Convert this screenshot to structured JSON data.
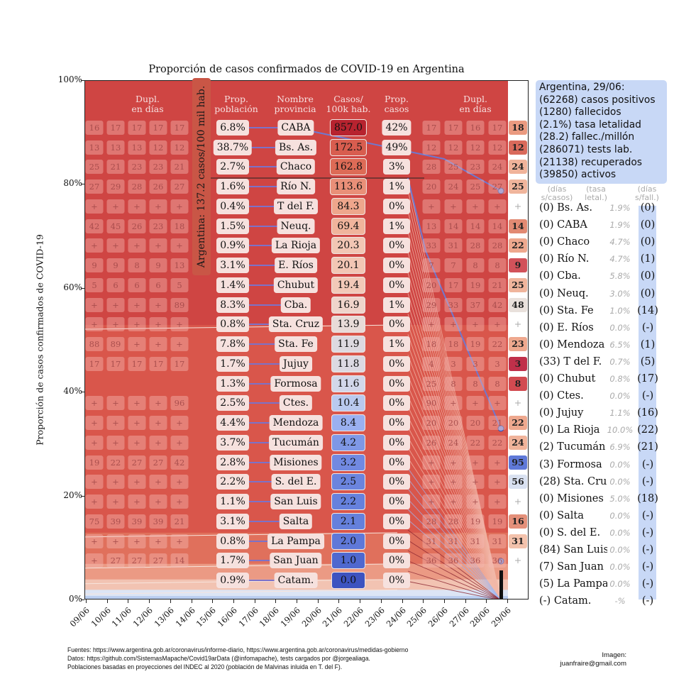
{
  "chart_data": {
    "type": "area",
    "title": "Proporción de casos confirmados de COVID-19 en Argentina",
    "ylabel": "Proporción de casos confirmados de COVID-19",
    "xlabel": "",
    "ylim": [
      0,
      100
    ],
    "yticks": [
      "0%",
      "20%",
      "40%",
      "60%",
      "80%",
      "100%"
    ],
    "categories": [
      "09/06",
      "10/06",
      "11/06",
      "12/06",
      "13/06",
      "14/06",
      "15/06",
      "16/06",
      "17/06",
      "18/06",
      "19/06",
      "20/06",
      "21/06",
      "22/06",
      "23/06",
      "24/06",
      "25/06",
      "26/06",
      "27/06",
      "28/06",
      "29/06"
    ],
    "argentina_label": "Argentina: 137.2 casos/100 mil hab.",
    "headers": {
      "dupl_left": "Dupl.\nen días",
      "prop_poblacion": "Prop.\npoblación",
      "nombre": "Nombre\nprovincia",
      "casos_100k": "Casos/\n100k hab.",
      "prop_casos": "Prop.\ncasos",
      "dupl_right": "Dupl.\nen días"
    },
    "provinces": [
      {
        "name": "CABA",
        "prop_poblacion": "6.8%",
        "casos_100k": "857.0",
        "prop_casos": "42%",
        "dupl_left": [
          "16",
          "17",
          "17",
          "17",
          "17"
        ],
        "dupl_right": [
          "17",
          "17",
          "16",
          "17"
        ],
        "dupl_latest": "18",
        "casos_color": "#b7232f",
        "latest_color": "#ea9a80"
      },
      {
        "name": "Bs. As.",
        "prop_poblacion": "38.7%",
        "casos_100k": "172.5",
        "prop_casos": "49%",
        "dupl_left": [
          "13",
          "13",
          "13",
          "12",
          "12"
        ],
        "dupl_right": [
          "12",
          "12",
          "12",
          "12"
        ],
        "dupl_latest": "12",
        "casos_color": "#d85d4f",
        "latest_color": "#d96a5b"
      },
      {
        "name": "Chaco",
        "prop_poblacion": "2.7%",
        "casos_100k": "162.8",
        "prop_casos": "3%",
        "dupl_left": [
          "25",
          "21",
          "23",
          "23",
          "21"
        ],
        "dupl_right": [
          "28",
          "25",
          "23",
          "24"
        ],
        "dupl_latest": "24",
        "casos_color": "#dd6b56",
        "latest_color": "#f0b39a"
      },
      {
        "name": "Río N.",
        "prop_poblacion": "1.6%",
        "casos_100k": "113.6",
        "prop_casos": "1%",
        "dupl_left": [
          "27",
          "29",
          "28",
          "26",
          "27"
        ],
        "dupl_right": [
          "20",
          "24",
          "25",
          "27"
        ],
        "dupl_latest": "25",
        "casos_color": "#e98f78",
        "latest_color": "#f0b59c"
      },
      {
        "name": "T del F.",
        "prop_poblacion": "0.4%",
        "casos_100k": "84.3",
        "prop_casos": "0%",
        "dupl_left": [
          "+",
          "+",
          "+",
          "+",
          "+"
        ],
        "dupl_right": [
          "+",
          "+",
          "+",
          "+"
        ],
        "dupl_latest": "+",
        "casos_color": "#eea68c",
        "latest_color": ""
      },
      {
        "name": "Neuq.",
        "prop_poblacion": "1.5%",
        "casos_100k": "69.4",
        "prop_casos": "1%",
        "dupl_left": [
          "42",
          "45",
          "26",
          "23",
          "18"
        ],
        "dupl_right": [
          "13",
          "14",
          "14",
          "14"
        ],
        "dupl_latest": "14",
        "casos_color": "#f0b49c",
        "latest_color": "#e28a73"
      },
      {
        "name": "La Rioja",
        "prop_poblacion": "0.9%",
        "casos_100k": "20.3",
        "prop_casos": "0%",
        "dupl_left": [
          "+",
          "+",
          "+",
          "+",
          "+"
        ],
        "dupl_right": [
          "33",
          "31",
          "28",
          "28"
        ],
        "dupl_latest": "22",
        "casos_color": "#f2c6b4",
        "latest_color": "#eea88e"
      },
      {
        "name": "E. Ríos",
        "prop_poblacion": "3.1%",
        "casos_100k": "20.1",
        "prop_casos": "0%",
        "dupl_left": [
          "9",
          "9",
          "8",
          "9",
          "13"
        ],
        "dupl_right": [
          "7",
          "7",
          "8",
          "8"
        ],
        "dupl_latest": "9",
        "casos_color": "#f2c6b4",
        "latest_color": "#d2525a"
      },
      {
        "name": "Chubut",
        "prop_poblacion": "1.4%",
        "casos_100k": "19.4",
        "prop_casos": "0%",
        "dupl_left": [
          "5",
          "6",
          "6",
          "6",
          "5"
        ],
        "dupl_right": [
          "20",
          "17",
          "19",
          "21"
        ],
        "dupl_latest": "25",
        "casos_color": "#f2c9b8",
        "latest_color": "#f0b59c"
      },
      {
        "name": "Cba.",
        "prop_poblacion": "8.3%",
        "casos_100k": "16.9",
        "prop_casos": "1%",
        "dupl_left": [
          "+",
          "+",
          "+",
          "+",
          "89"
        ],
        "dupl_right": [
          "29",
          "33",
          "37",
          "42"
        ],
        "dupl_latest": "48",
        "casos_color": "#efd4cb",
        "latest_color": "#e9e1dc"
      },
      {
        "name": "Sta. Cruz",
        "prop_poblacion": "0.8%",
        "casos_100k": "13.9",
        "prop_casos": "0%",
        "dupl_left": [
          "+",
          "+",
          "+",
          "+",
          "+"
        ],
        "dupl_right": [
          "+",
          "+",
          "+",
          "+"
        ],
        "dupl_latest": "+",
        "casos_color": "#e8dbd8",
        "latest_color": ""
      },
      {
        "name": "Sta. Fe",
        "prop_poblacion": "7.8%",
        "casos_100k": "11.9",
        "prop_casos": "1%",
        "dupl_left": [
          "88",
          "89",
          "+",
          "+",
          "+"
        ],
        "dupl_right": [
          "18",
          "18",
          "19",
          "22"
        ],
        "dupl_latest": "23",
        "casos_color": "#ddd9e0",
        "latest_color": "#eea88e"
      },
      {
        "name": "Jujuy",
        "prop_poblacion": "1.7%",
        "casos_100k": "11.8",
        "prop_casos": "0%",
        "dupl_left": [
          "17",
          "17",
          "17",
          "17",
          "17"
        ],
        "dupl_right": [
          "4",
          "3",
          "3",
          "3"
        ],
        "dupl_latest": "3",
        "casos_color": "#dcd9e2",
        "latest_color": "#c0304a"
      },
      {
        "name": "Formosa",
        "prop_poblacion": "1.3%",
        "casos_100k": "11.6",
        "prop_casos": "0%",
        "dupl_left": [],
        "dupl_right": [
          "25",
          "8",
          "8",
          "8"
        ],
        "dupl_latest": "8",
        "casos_color": "#d2d7ea",
        "latest_color": "#d24a50"
      },
      {
        "name": "Ctes.",
        "prop_poblacion": "2.5%",
        "casos_100k": "10.4",
        "prop_casos": "0%",
        "dupl_left": [
          "+",
          "+",
          "+",
          "+",
          "96"
        ],
        "dupl_right": [
          "90",
          "+",
          "+",
          "+"
        ],
        "dupl_latest": "+",
        "casos_color": "#b9c9ef",
        "latest_color": ""
      },
      {
        "name": "Mendoza",
        "prop_poblacion": "4.4%",
        "casos_100k": "8.4",
        "prop_casos": "0%",
        "dupl_left": [
          "+",
          "+",
          "+",
          "+",
          "+"
        ],
        "dupl_right": [
          "20",
          "20",
          "20",
          "21"
        ],
        "dupl_latest": "22",
        "casos_color": "#9ab0f0",
        "latest_color": "#eea88e"
      },
      {
        "name": "Tucumán",
        "prop_poblacion": "3.7%",
        "casos_100k": "4.2",
        "prop_casos": "0%",
        "dupl_left": [
          "+",
          "+",
          "+",
          "+",
          "+"
        ],
        "dupl_right": [
          "26",
          "24",
          "22",
          "22"
        ],
        "dupl_latest": "24",
        "casos_color": "#7f98e6",
        "latest_color": "#f0b39a"
      },
      {
        "name": "Misiones",
        "prop_poblacion": "2.8%",
        "casos_100k": "3.2",
        "prop_casos": "0%",
        "dupl_left": [
          "19",
          "22",
          "27",
          "27",
          "42"
        ],
        "dupl_right": [
          "+",
          "+",
          "+",
          "+"
        ],
        "dupl_latest": "95",
        "casos_color": "#7189e1",
        "latest_color": "#5f79d8"
      },
      {
        "name": "S. del E.",
        "prop_poblacion": "2.2%",
        "casos_100k": "2.5",
        "prop_casos": "0%",
        "dupl_left": [
          "+",
          "+",
          "+",
          "+",
          "+"
        ],
        "dupl_right": [
          "+",
          "+",
          "+",
          "+"
        ],
        "dupl_latest": "56",
        "casos_color": "#6b84de",
        "latest_color": "#d9e1f1"
      },
      {
        "name": "San Luis",
        "prop_poblacion": "1.1%",
        "casos_100k": "2.2",
        "prop_casos": "0%",
        "dupl_left": [
          "+",
          "+",
          "+",
          "+",
          "+"
        ],
        "dupl_right": [
          "+",
          "+",
          "+",
          "+"
        ],
        "dupl_latest": "+",
        "casos_color": "#6681dd",
        "latest_color": ""
      },
      {
        "name": "Salta",
        "prop_poblacion": "3.1%",
        "casos_100k": "2.1",
        "prop_casos": "0%",
        "dupl_left": [
          "75",
          "39",
          "39",
          "39",
          "21"
        ],
        "dupl_right": [
          "28",
          "28",
          "19",
          "19"
        ],
        "dupl_latest": "16",
        "casos_color": "#6580dc",
        "latest_color": "#e4907a"
      },
      {
        "name": "La Pampa",
        "prop_poblacion": "0.8%",
        "casos_100k": "2.0",
        "prop_casos": "0%",
        "dupl_left": [
          "+",
          "+",
          "+",
          "+",
          "+"
        ],
        "dupl_right": [
          "31",
          "31",
          "31",
          "31"
        ],
        "dupl_latest": "31",
        "casos_color": "#5f78d8",
        "latest_color": "#f3c2ac"
      },
      {
        "name": "San Juan",
        "prop_poblacion": "1.7%",
        "casos_100k": "1.0",
        "prop_casos": "0%",
        "dupl_left": [
          "+",
          "27",
          "27",
          "27",
          "14"
        ],
        "dupl_right": [
          "36",
          "36",
          "36",
          "36"
        ],
        "dupl_latest": "+",
        "casos_color": "#4f68cf",
        "latest_color": ""
      },
      {
        "name": "Catam.",
        "prop_poblacion": "0.9%",
        "casos_100k": "0.0",
        "prop_casos": "0%",
        "dupl_left": [],
        "dupl_right": [],
        "dupl_latest": "",
        "casos_color": "#3d53c0",
        "latest_color": ""
      }
    ]
  },
  "summary": {
    "lines": [
      "Argentina, 29/06:",
      "(62268) casos positivos",
      "(1280) fallecidos",
      "(2.1%) tasa letalidad",
      "(28.2) fallec./millón",
      "(286071) tests lab.",
      "(21138) recuperados",
      "(39850) activos"
    ],
    "col_headers": [
      "(días\ns/casos)",
      "(tasa\nletal.)",
      "(días\ns/fall.)"
    ],
    "rows": [
      {
        "label": "(0) Bs. As.",
        "rate": "1.9%",
        "fall": "(0)"
      },
      {
        "label": "(0) CABA",
        "rate": "1.9%",
        "fall": "(0)"
      },
      {
        "label": "(0) Chaco",
        "rate": "4.7%",
        "fall": "(0)"
      },
      {
        "label": "(0) Río N.",
        "rate": "4.7%",
        "fall": "(1)"
      },
      {
        "label": "(0) Cba.",
        "rate": "5.8%",
        "fall": "(0)"
      },
      {
        "label": "(0) Neuq.",
        "rate": "3.0%",
        "fall": "(0)"
      },
      {
        "label": "(0) Sta. Fe",
        "rate": "1.0%",
        "fall": "(14)"
      },
      {
        "label": "(0) E. Ríos",
        "rate": "0.0%",
        "fall": "(-)"
      },
      {
        "label": "(0) Mendoza",
        "rate": "6.5%",
        "fall": "(1)"
      },
      {
        "label": "(33) T del F.",
        "rate": "0.7%",
        "fall": "(5)"
      },
      {
        "label": "(0) Chubut",
        "rate": "0.8%",
        "fall": "(17)"
      },
      {
        "label": "(0) Ctes.",
        "rate": "0.0%",
        "fall": "(-)"
      },
      {
        "label": "(0) Jujuy",
        "rate": "1.1%",
        "fall": "(16)"
      },
      {
        "label": "(0) La Rioja",
        "rate": "10.0%",
        "fall": "(22)"
      },
      {
        "label": "(2) Tucumán",
        "rate": "6.9%",
        "fall": "(21)"
      },
      {
        "label": "(3) Formosa",
        "rate": "0.0%",
        "fall": "(-)"
      },
      {
        "label": "(28) Sta. Cruz",
        "rate": "0.0%",
        "fall": "(-)"
      },
      {
        "label": "(0) Misiones",
        "rate": "5.0%",
        "fall": "(18)"
      },
      {
        "label": "(0) Salta",
        "rate": "0.0%",
        "fall": "(-)"
      },
      {
        "label": "(0) S. del E.",
        "rate": "0.0%",
        "fall": "(-)"
      },
      {
        "label": "(84) San Luis",
        "rate": "0.0%",
        "fall": "(-)"
      },
      {
        "label": "(7) San Juan",
        "rate": "0.0%",
        "fall": "(-)"
      },
      {
        "label": "(5) La Pampa",
        "rate": "0.0%",
        "fall": "(-)"
      },
      {
        "label": "(-) Catam.",
        "rate": "-%",
        "fall": "(-)"
      }
    ]
  },
  "footer": {
    "lines": [
      "Fuentes: https://www.argentina.gob.ar/coronavirus/informe-diario, https://www.argentina.gob.ar/coronavirus/medidas-gobierno",
      "Datos: https://github.com/SistemasMapache/Covid19arData (@infomapache), tests cargados por @jorgealiaga.",
      "Poblaciones basadas en proyecciones del INDEC al 2020 (población de Malvinas inluida en T. del F)."
    ],
    "credit": "Imagen:\njuanfraire@gmail.com"
  },
  "colors": {
    "background_red": "#cf4543",
    "summary_blue": "#c8d8f6",
    "trend_line": "#6f78cf"
  }
}
